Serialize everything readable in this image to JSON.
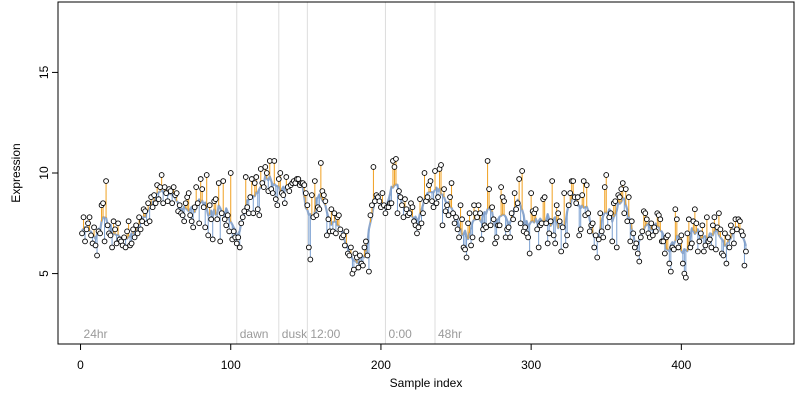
{
  "chart_data": {
    "type": "scatter",
    "title": "",
    "xlabel": "Sample index",
    "ylabel": "Expression",
    "xlim": [
      -15,
      475
    ],
    "ylim": [
      1.5,
      18.5
    ],
    "xticks": [
      0,
      100,
      200,
      300,
      400
    ],
    "yticks": [
      5,
      10,
      15
    ],
    "grid": false,
    "colors": {
      "points_fill": "#ffffff",
      "points_stroke": "#000000",
      "fit_line": "#8fa8cc",
      "residual_positive": "#f0a020",
      "residual_negative": "#7a9fd0",
      "region_line": "#dddddd",
      "region_label": "#9a9a9a"
    },
    "regions": [
      {
        "label": "24hr",
        "start": 0
      },
      {
        "label": "dawn",
        "start": 104
      },
      {
        "label": "dusk",
        "start": 132
      },
      {
        "label": "12:00",
        "start": 151
      },
      {
        "label": "0:00",
        "start": 203
      },
      {
        "label": "48hr",
        "start": 236
      }
    ],
    "series": [
      {
        "marker": "open-circle",
        "x_start": 1,
        "x_step": 1,
        "y": [
          7.0,
          7.8,
          6.6,
          7.2,
          7.5,
          7.8,
          6.9,
          6.5,
          7.3,
          6.4,
          5.9,
          7.1,
          7.0,
          8.4,
          8.5,
          6.6,
          9.6,
          7.4,
          7.0,
          6.9,
          6.3,
          7.6,
          7.2,
          6.5,
          7.5,
          6.7,
          6.6,
          6.4,
          6.8,
          6.3,
          7.1,
          7.6,
          6.4,
          6.5,
          7.2,
          6.8,
          7.4,
          7.0,
          7.8,
          7.2,
          7.6,
          8.2,
          8.1,
          7.5,
          8.5,
          7.6,
          8.8,
          8.3,
          8.9,
          8.5,
          9.4,
          8.7,
          9.3,
          9.9,
          8.5,
          9.3,
          9.0,
          8.6,
          9.2,
          9.1,
          8.5,
          9.3,
          8.9,
          9.0,
          8.1,
          8.4,
          8.0,
          7.9,
          7.6,
          8.5,
          8.8,
          9.0,
          7.9,
          7.6,
          7.3,
          8.3,
          9.3,
          8.5,
          7.5,
          9.7,
          9.2,
          8.3,
          7.3,
          9.9,
          6.9,
          8.4,
          7.7,
          6.7,
          8.6,
          8.7,
          7.7,
          9.5,
          6.6,
          8.0,
          9.6,
          7.7,
          7.4,
          7.9,
          7.1,
          10.0,
          6.7,
          7.1,
          6.8,
          6.5,
          6.8,
          6.3,
          7.5,
          7.8,
          8.1,
          9.8,
          8.3,
          8.0,
          8.8,
          9.7,
          8.0,
          9.5,
          9.8,
          8.2,
          7.9,
          10.2,
          9.5,
          9.3,
          10.3,
          10.0,
          9.1,
          10.6,
          9.2,
          9.0,
          10.6,
          8.7,
          8.4,
          9.7,
          10.0,
          9.0,
          8.9,
          8.5,
          9.8,
          9.3,
          9.1,
          9.4,
          9.5,
          9.6,
          9.5,
          9.7,
          9.7,
          9.4,
          9.5,
          9.5,
          9.4,
          9.0,
          8.4,
          6.3,
          5.7,
          8.9,
          7.8,
          9.6,
          7.9,
          8.3,
          8.2,
          10.5,
          9.1,
          8.9,
          8.6,
          6.9,
          7.7,
          7.1,
          8.2,
          7.1,
          8.0,
          7.0,
          7.8,
          7.9,
          7.2,
          6.8,
          6.9,
          6.4,
          7.1,
          6.0,
          5.9,
          6.3,
          5.0,
          5.2,
          6.0,
          5.8,
          5.3,
          5.9,
          5.5,
          5.4,
          6.3,
          6.6,
          5.9,
          5.1,
          7.9,
          8.4,
          10.3,
          8.6,
          8.9,
          8.8,
          8.6,
          8.3,
          9.0,
          8.4,
          8.0,
          8.3,
          8.3,
          8.5,
          8.5,
          10.6,
          10.3,
          10.7,
          8.0,
          9.1,
          8.8,
          8.4,
          7.8,
          8.7,
          8.2,
          7.9,
          8.0,
          8.5,
          8.3,
          7.6,
          7.4,
          7.0,
          7.3,
          8.7,
          7.5,
          8.0,
          10.0,
          8.6,
          8.8,
          9.4,
          9.6,
          8.6,
          8.3,
          10.1,
          8.5,
          8.8,
          10.2,
          10.4,
          7.4,
          9.2,
          8.1,
          8.4,
          7.9,
          8.8,
          9.5,
          8.0,
          7.5,
          7.8,
          7.2,
          6.8,
          8.4,
          7.7,
          6.3,
          6.2,
          5.8,
          7.5,
          8.0,
          6.4,
          6.8,
          8.4,
          8.0,
          7.8,
          8.4,
          8.0,
          6.7,
          7.2,
          7.4,
          7.3,
          10.6,
          9.2,
          7.4,
          8.3,
          7.7,
          6.5,
          6.8,
          7.4,
          7.4,
          9.3,
          8.8,
          8.6,
          6.8,
          7.2,
          7.3,
          6.8,
          8.0,
          7.7,
          9.0,
          8.2,
          8.5,
          9.7,
          7.5,
          10.1,
          7.1,
          7.3,
          7.0,
          6.8,
          6.0,
          9.0,
          8.1,
          8.0,
          8.2,
          7.2,
          6.3,
          7.4,
          7.5,
          8.7,
          8.8,
          7.5,
          6.5,
          7.0,
          7.6,
          9.6,
          6.9,
          6.5,
          8.4,
          8.0,
          7.6,
          6.1,
          7.3,
          9.0,
          6.4,
          6.9,
          8.4,
          9.0,
          9.6,
          9.6,
          8.8,
          8.5,
          8.8,
          6.9,
          7.2,
          8.9,
          9.6,
          7.9,
          9.4,
          8.0,
          7.1,
          7.4,
          7.5,
          6.3,
          6.9,
          5.8,
          6.7,
          8.0,
          7.1,
          6.8,
          9.3,
          9.9,
          7.3,
          7.8,
          8.0,
          6.6,
          8.5,
          8.6,
          6.3,
          8.9,
          8.8,
          9.2,
          9.5,
          8.0,
          9.2,
          7.6,
          8.8,
          6.6,
          7.6,
          7.0,
          6.3,
          6.5,
          6.0,
          5.6,
          6.8,
          7.1,
          8.1,
          8.0,
          7.7,
          7.0,
          6.8,
          7.5,
          6.9,
          7.3,
          7.1,
          8.0,
          7.9,
          7.7,
          6.6,
          6.6,
          6.0,
          6.8,
          6.9,
          5.5,
          5.1,
          6.3,
          6.2,
          8.2,
          7.7,
          6.3,
          6.6,
          6.9,
          5.5,
          5.0,
          4.8,
          7.0,
          7.7,
          6.3,
          6.5,
          7.6,
          8.2,
          7.5,
          6.1,
          6.6,
          7.0,
          7.4,
          6.1,
          6.4,
          7.8,
          6.6,
          6.7,
          6.3,
          7.4,
          7.8,
          6.2,
          7.3,
          8.0,
          7.2,
          6.0,
          5.9,
          7.0,
          5.5,
          6.8,
          6.3,
          7.4,
          7.1,
          6.5,
          7.7,
          7.2,
          7.7,
          7.6,
          7.1,
          6.9,
          5.4,
          6.1
        ]
      }
    ]
  }
}
